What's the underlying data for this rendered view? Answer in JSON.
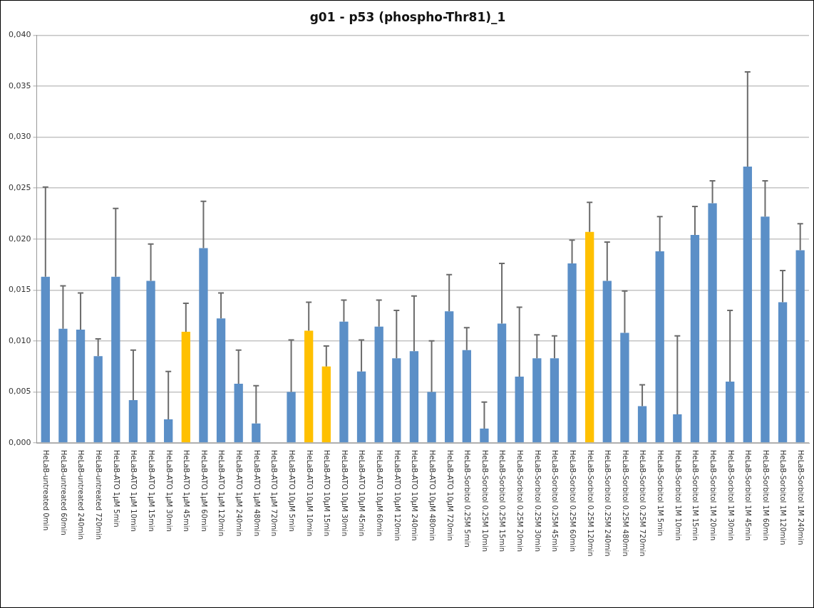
{
  "chart_data": {
    "type": "bar",
    "title": "g01 - p53 (phospho-Thr81)_1",
    "categories": [
      "HeLaB-untreated 0min",
      "HeLaB-untreated 60min",
      "HeLaB-untreated 240min",
      "HeLaB-untreated 720min",
      "HeLaB-ATO 1µM 5min",
      "HeLaB-ATO 1µM 10min",
      "HeLaB-ATO 1µM 15min",
      "HeLaB-ATO 1µM 30min",
      "HeLaB-ATO 1µM 45min",
      "HeLaB-ATO 1µM 60min",
      "HeLaB-ATO 1µM 120min",
      "HeLaB-ATO 1µM 240min",
      "HeLaB-ATO 1µM 480min",
      "HeLaB-ATO 1µM 720min",
      "HeLaB-ATO 10µM 5min",
      "HeLaB-ATO 10µM 10min",
      "HeLaB-ATO 10µM 15min",
      "HeLaB-ATO 10µM 30min",
      "HeLaB-ATO 10µM 45min",
      "HeLaB-ATO 10µM 60min",
      "HeLaB-ATO 10µM 120min",
      "HeLaB-ATO 10µM 240min",
      "HeLaB-ATO 10µM 480min",
      "HeLaB-ATO 10µM 720min",
      "HeLaB-Sorbitol 0.25M 5min",
      "HeLaB-Sorbitol 0.25M 10min",
      "HeLaB-Sorbitol 0.25M 15min",
      "HeLaB-Sorbitol 0.25M 20min",
      "HeLaB-Sorbitol 0.25M 30min",
      "HeLaB-Sorbitol 0.25M 45min",
      "HeLaB-Sorbitol 0.25M 60min",
      "HeLaB-Sorbitol 0.25M 120min",
      "HeLaB-Sorbitol 0.25M 240min",
      "HeLaB-Sorbitol 0.25M 480min",
      "HeLaB-Sorbitol 0.25M 720min",
      "HeLaB-Sorbitol 1M 5min",
      "HeLaB-Sorbitol 1M 10min",
      "HeLaB-Sorbitol 1M 15min",
      "HeLaB-Sorbitol 1M 20min",
      "HeLaB-Sorbitol 1M 30min",
      "HeLaB-Sorbitol 1M 45min",
      "HeLaB-Sorbitol 1M 60min",
      "HeLaB-Sorbitol 1M 120min",
      "HeLaB-Sorbitol 1M 240min"
    ],
    "values": [
      0.0163,
      0.0112,
      0.0111,
      0.0085,
      0.0163,
      0.0042,
      0.0159,
      0.0023,
      0.0109,
      0.0191,
      0.0122,
      0.0058,
      0.0019,
      null,
      0.005,
      0.011,
      0.0075,
      0.0119,
      0.007,
      0.0114,
      0.0083,
      0.009,
      0.005,
      0.0129,
      0.0091,
      0.0014,
      0.0117,
      0.0065,
      0.0083,
      0.0083,
      0.0176,
      0.0207,
      0.0159,
      0.0108,
      0.0036,
      0.0188,
      0.0028,
      0.0204,
      0.0235,
      0.006,
      0.0271,
      0.0222,
      0.0138,
      0.0189
    ],
    "errors": [
      [
        0.0163,
        0.0251
      ],
      [
        0.0112,
        0.0154
      ],
      [
        0.0111,
        0.0147
      ],
      [
        0.0085,
        0.0102
      ],
      [
        0.0163,
        0.023
      ],
      [
        0.0042,
        0.0091
      ],
      [
        0.0159,
        0.0195
      ],
      [
        0.0023,
        0.007
      ],
      [
        0.0109,
        0.0137
      ],
      [
        0.0191,
        0.0237
      ],
      [
        0.0122,
        0.0147
      ],
      [
        0.0058,
        0.0091
      ],
      [
        0.0019,
        0.0056
      ],
      null,
      [
        0.005,
        0.0101
      ],
      [
        0.011,
        0.0138
      ],
      [
        0.0075,
        0.0095
      ],
      [
        0.0119,
        0.014
      ],
      [
        0.007,
        0.0101
      ],
      [
        0.0114,
        0.014
      ],
      [
        0.0083,
        0.013
      ],
      [
        0.009,
        0.0144
      ],
      [
        0.005,
        0.01
      ],
      [
        0.0129,
        0.0165
      ],
      [
        0.0091,
        0.0113
      ],
      [
        0.0014,
        0.004
      ],
      [
        0.0117,
        0.0176
      ],
      [
        0.0065,
        0.0133
      ],
      [
        0.0083,
        0.0106
      ],
      [
        0.0083,
        0.0105
      ],
      [
        0.0176,
        0.0199
      ],
      [
        0.0207,
        0.0236
      ],
      [
        0.0159,
        0.0197
      ],
      [
        0.0108,
        0.0149
      ],
      [
        0.0036,
        0.0057
      ],
      [
        0.0188,
        0.0222
      ],
      [
        0.0028,
        0.0105
      ],
      [
        0.0204,
        0.0232
      ],
      [
        0.0235,
        0.0257
      ],
      [
        0.006,
        0.013
      ],
      [
        0.0271,
        0.0364
      ],
      [
        0.0222,
        0.0257
      ],
      [
        0.0138,
        0.0169
      ],
      [
        0.0189,
        0.0215
      ]
    ],
    "colors": [
      "#5b8fc7",
      "#5b8fc7",
      "#5b8fc7",
      "#5b8fc7",
      "#5b8fc7",
      "#5b8fc7",
      "#5b8fc7",
      "#5b8fc7",
      "#ffc000",
      "#5b8fc7",
      "#5b8fc7",
      "#5b8fc7",
      "#5b8fc7",
      "#5b8fc7",
      "#5b8fc7",
      "#ffc000",
      "#ffc000",
      "#5b8fc7",
      "#5b8fc7",
      "#5b8fc7",
      "#5b8fc7",
      "#5b8fc7",
      "#5b8fc7",
      "#5b8fc7",
      "#5b8fc7",
      "#5b8fc7",
      "#5b8fc7",
      "#5b8fc7",
      "#5b8fc7",
      "#5b8fc7",
      "#5b8fc7",
      "#ffc000",
      "#5b8fc7",
      "#5b8fc7",
      "#5b8fc7",
      "#5b8fc7",
      "#5b8fc7",
      "#5b8fc7",
      "#5b8fc7",
      "#5b8fc7",
      "#5b8fc7",
      "#5b8fc7",
      "#5b8fc7",
      "#5b8fc7"
    ],
    "ylim": [
      0,
      0.04
    ],
    "yticks": [
      {
        "value": 0,
        "label": "0,000"
      },
      {
        "value": 0.005,
        "label": "0,005"
      },
      {
        "value": 0.01,
        "label": "0,010"
      },
      {
        "value": 0.015,
        "label": "0,015"
      },
      {
        "value": 0.02,
        "label": "0,020"
      },
      {
        "value": 0.025,
        "label": "0,025"
      },
      {
        "value": 0.03,
        "label": "0,030"
      },
      {
        "value": 0.035,
        "label": "0,035"
      },
      {
        "value": 0.04,
        "label": "0,040"
      }
    ],
    "grid": "y",
    "legend": false
  }
}
